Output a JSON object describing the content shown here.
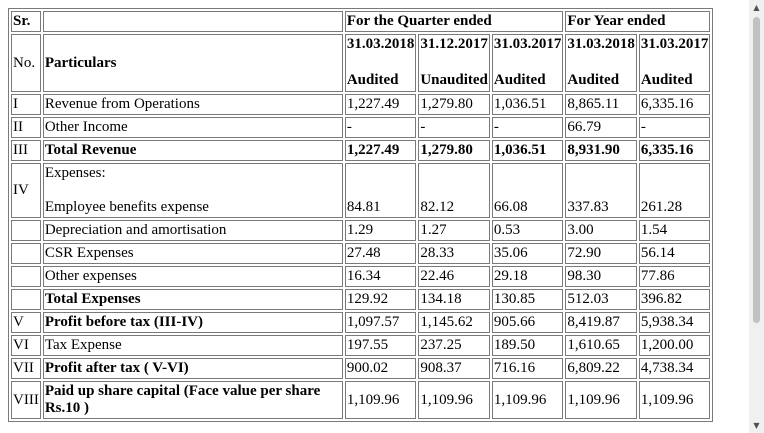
{
  "header": {
    "sr": "Sr.",
    "no": "No.",
    "particulars": "Particulars",
    "quarter_group": "For the Quarter ended",
    "year_group": "For Year ended",
    "dates": [
      "31.03.2018",
      "31.12.2017",
      "31.03.2017",
      "31.03.2018",
      "31.03.2017"
    ],
    "status": [
      "Audited",
      "Unaudited",
      "Audited",
      "Audited",
      "Audited"
    ]
  },
  "rows": [
    {
      "sr": "I",
      "label": "Revenue from Operations",
      "values": [
        "1,227.49",
        "1,279.80",
        "1,036.51",
        "8,865.11",
        "6,335.16"
      ]
    },
    {
      "sr": "II",
      "label": "Other Income",
      "values": [
        "-",
        "-",
        "-",
        "66.79",
        "-"
      ]
    },
    {
      "sr": "III",
      "label": "Total Revenue",
      "values": [
        "1,227.49",
        "1,279.80",
        "1,036.51",
        "8,931.90",
        "6,335.16"
      ]
    },
    {
      "sr": "IV",
      "label": "Expenses:",
      "sublabel": "Employee benefits expense",
      "values": [
        "84.81",
        "82.12",
        "66.08",
        "337.83",
        "261.28"
      ]
    },
    {
      "sr": "",
      "label": "Depreciation and amortisation",
      "values": [
        "1.29",
        "1.27",
        "0.53",
        "3.00",
        "1.54"
      ]
    },
    {
      "sr": "",
      "label": "CSR Expenses",
      "values": [
        "27.48",
        "28.33",
        "35.06",
        "72.90",
        "56.14"
      ]
    },
    {
      "sr": "",
      "label": "Other expenses",
      "values": [
        "16.34",
        "22.46",
        "29.18",
        "98.30",
        "77.86"
      ]
    },
    {
      "sr": "",
      "label": "Total Expenses",
      "values": [
        "129.92",
        "134.18",
        "130.85",
        "512.03",
        "396.82"
      ]
    },
    {
      "sr": "V",
      "label": "Profit before tax (III-IV)",
      "values": [
        "1,097.57",
        "1,145.62",
        "905.66",
        "8,419.87",
        "5,938.34"
      ]
    },
    {
      "sr": "VI",
      "label": "Tax Expense",
      "values": [
        "197.55",
        "237.25",
        "189.50",
        "1,610.65",
        "1,200.00"
      ]
    },
    {
      "sr": "VII",
      "label": "Profit after tax ( V-VI)",
      "values": [
        "900.02",
        "908.37",
        "716.16",
        "6,809.22",
        "4,738.34"
      ]
    },
    {
      "sr": "VIII",
      "label": "Paid up share capital (Face value per share Rs.10 )",
      "values": [
        "1,109.96",
        "1,109.96",
        "1,109.96",
        "1,109.96",
        "1,109.96"
      ]
    }
  ],
  "scrollbar": {
    "up_icon": "▲",
    "down_icon": "▼"
  }
}
